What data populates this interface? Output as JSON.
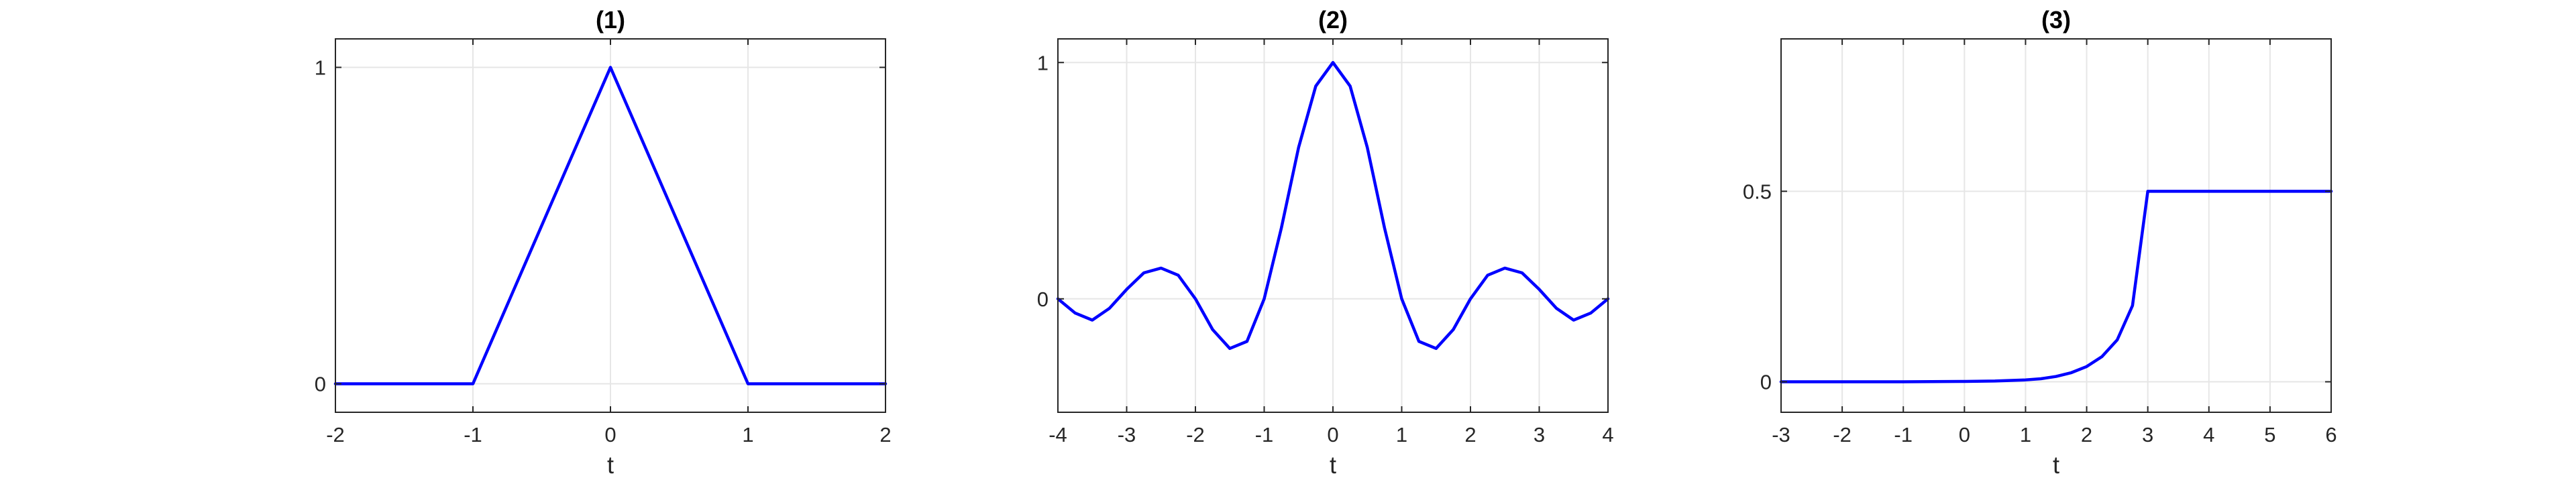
{
  "chart_data": [
    {
      "type": "line",
      "title": "(1)",
      "xlabel": "t",
      "ylabel": "",
      "xlim": [
        -2,
        2
      ],
      "ylim": [
        -0.09,
        1.09
      ],
      "xticks": [
        -2,
        -1,
        0,
        1,
        2
      ],
      "xtick_labels": [
        "-2",
        "-1",
        "0",
        "1",
        "2"
      ],
      "yticks": [
        0,
        1
      ],
      "ytick_labels": [
        "0",
        "1"
      ],
      "grid": true,
      "series": [
        {
          "color": "#0000ff",
          "x": [
            -2,
            -1,
            0,
            1,
            2
          ],
          "y": [
            0,
            0,
            1,
            0,
            0
          ]
        }
      ]
    },
    {
      "type": "line",
      "title": "(2)",
      "xlabel": "t",
      "ylabel": "",
      "xlim": [
        -4,
        4
      ],
      "ylim": [
        -0.48,
        1.1
      ],
      "xticks": [
        -4,
        -3,
        -2,
        -1,
        0,
        1,
        2,
        3,
        4
      ],
      "xtick_labels": [
        "-4",
        "-3",
        "-2",
        "-1",
        "0",
        "1",
        "2",
        "3",
        "4"
      ],
      "yticks": [
        0,
        1
      ],
      "ytick_labels": [
        "0",
        "1"
      ],
      "grid": true,
      "series": [
        {
          "color": "#0000ff",
          "x": [
            -4,
            -3.75,
            -3.5,
            -3.25,
            -3,
            -2.75,
            -2.5,
            -2.25,
            -2,
            -1.75,
            -1.5,
            -1.25,
            -1,
            -0.75,
            -0.5,
            -0.25,
            0,
            0.25,
            0.5,
            0.75,
            1,
            1.25,
            1.5,
            1.75,
            2,
            2.25,
            2.5,
            2.75,
            3,
            3.25,
            3.5,
            3.75,
            4
          ],
          "y": [
            0,
            -0.06,
            -0.09,
            -0.04,
            0.04,
            0.11,
            0.13,
            0.1,
            0,
            -0.13,
            -0.21,
            -0.18,
            0,
            0.3,
            0.64,
            0.9,
            1,
            0.9,
            0.64,
            0.3,
            0,
            -0.18,
            -0.21,
            -0.13,
            0,
            0.1,
            0.13,
            0.11,
            0.04,
            -0.04,
            -0.09,
            -0.06,
            0
          ]
        }
      ]
    },
    {
      "type": "line",
      "title": "(3)",
      "xlabel": "t",
      "ylabel": "",
      "xlim": [
        -3,
        6
      ],
      "ylim": [
        -0.08,
        0.9
      ],
      "xticks": [
        -3,
        -2,
        -1,
        0,
        1,
        2,
        3,
        4,
        5,
        6
      ],
      "xtick_labels": [
        "-3",
        "-2",
        "-1",
        "0",
        "1",
        "2",
        "3",
        "4",
        "5",
        "6"
      ],
      "yticks": [
        0,
        0.5
      ],
      "ytick_labels": [
        "0",
        "0.5"
      ],
      "grid": true,
      "series": [
        {
          "color": "#0000ff",
          "x": [
            -3,
            -2,
            -1,
            0,
            0.5,
            1,
            1.25,
            1.5,
            1.75,
            2,
            2.25,
            2.5,
            2.75,
            3,
            4,
            5,
            6
          ],
          "y": [
            0,
            0,
            0,
            0.001,
            0.002,
            0.005,
            0.008,
            0.014,
            0.024,
            0.04,
            0.066,
            0.11,
            0.2,
            0.5,
            0.5,
            0.5,
            0.5
          ]
        }
      ]
    }
  ]
}
